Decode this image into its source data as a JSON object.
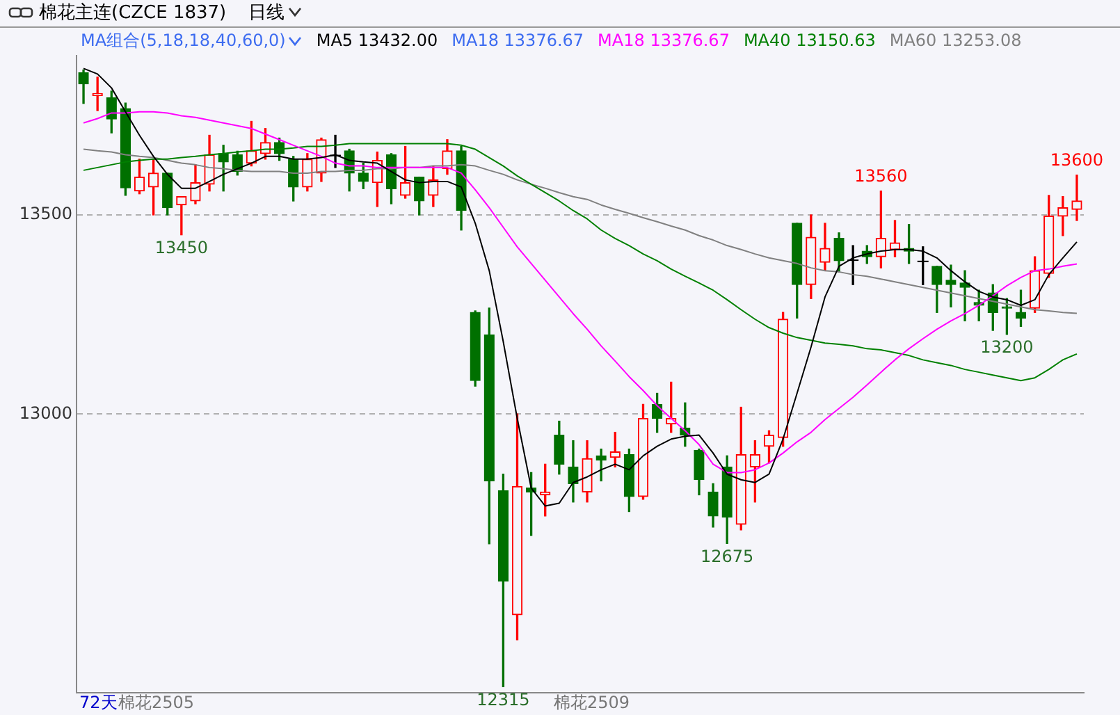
{
  "chart_data": {
    "type": "candlestick",
    "title": "棉花主连(CZCE 1837)",
    "subtitle": "日线",
    "legend_title": "MA组合(5,18,18,40,60,0)",
    "legend": "top",
    "grid": "y",
    "categories": [
      null,
      null,
      null,
      null,
      null,
      null,
      null,
      null,
      null,
      null,
      null,
      null,
      null,
      null,
      null,
      null,
      null,
      null,
      null,
      null,
      null,
      null,
      null,
      null,
      null,
      null,
      null,
      null,
      null,
      null,
      null,
      null,
      null,
      null,
      null,
      null,
      null,
      null,
      null,
      null,
      null,
      null,
      null,
      null,
      null,
      null,
      null,
      null,
      null,
      null,
      null,
      null,
      null,
      null,
      null,
      null,
      null,
      null,
      null,
      null,
      null,
      null,
      null,
      null,
      null,
      null,
      null,
      null,
      null,
      null,
      null,
      null
    ],
    "ylim": [
      12300,
      13900
    ],
    "yticks": [
      13500,
      13000
    ],
    "ohlc": [
      [
        13857,
        13864,
        13780,
        13829
      ],
      [
        13800,
        13846,
        13762,
        13805
      ],
      [
        13794,
        13811,
        13706,
        13741
      ],
      [
        13767,
        13781,
        13549,
        13568
      ],
      [
        13560,
        13640,
        13553,
        13595
      ],
      [
        13570,
        13640,
        13500,
        13605
      ],
      [
        13605,
        13605,
        13500,
        13518
      ],
      [
        13525,
        13546,
        13450,
        13546
      ],
      [
        13535,
        13626,
        13528,
        13581
      ],
      [
        13577,
        13700,
        13560,
        13651
      ],
      [
        13654,
        13675,
        13560,
        13633
      ],
      [
        13651,
        13660,
        13600,
        13609
      ],
      [
        13630,
        13735,
        13623,
        13661
      ],
      [
        13654,
        13717,
        13640,
        13682
      ],
      [
        13682,
        13693,
        13637,
        13654
      ],
      [
        13640,
        13647,
        13535,
        13570
      ],
      [
        13570,
        13654,
        13560,
        13640
      ],
      [
        13605,
        13693,
        13584,
        13689
      ],
      [
        13651,
        13700,
        13619,
        13651
      ],
      [
        13661,
        13665,
        13560,
        13605
      ],
      [
        13605,
        13630,
        13566,
        13584
      ],
      [
        13581,
        13658,
        13521,
        13637
      ],
      [
        13651,
        13654,
        13528,
        13566
      ],
      [
        13549,
        13672,
        13542,
        13581
      ],
      [
        13595,
        13595,
        13500,
        13535
      ],
      [
        13549,
        13623,
        13521,
        13588
      ],
      [
        13616,
        13689,
        13602,
        13661
      ],
      [
        13661,
        13672,
        13462,
        13511
      ],
      [
        13255,
        13259,
        13070,
        13084
      ],
      [
        13199,
        13266,
        12674,
        12832
      ],
      [
        12807,
        12849,
        12315,
        12580
      ],
      [
        12496,
        13000,
        12433,
        12818
      ],
      [
        12814,
        12853,
        12695,
        12804
      ],
      [
        12797,
        12874,
        12744,
        12804
      ],
      [
        12947,
        12982,
        12849,
        12874
      ],
      [
        12867,
        12933,
        12779,
        12825
      ],
      [
        12804,
        12933,
        12779,
        12888
      ],
      [
        12895,
        12912,
        12832,
        12884
      ],
      [
        12891,
        12954,
        12867,
        12905
      ],
      [
        12898,
        12912,
        12755,
        12793
      ],
      [
        12793,
        13024,
        12786,
        12989
      ],
      [
        13024,
        13052,
        12954,
        12989
      ],
      [
        12975,
        13080,
        12954,
        12989
      ],
      [
        12965,
        13028,
        12919,
        12947
      ],
      [
        12909,
        12912,
        12797,
        12835
      ],
      [
        12804,
        12825,
        12716,
        12744
      ],
      [
        12867,
        12895,
        12675,
        12741
      ],
      [
        12723,
        13017,
        12709,
        12898
      ],
      [
        12867,
        12933,
        12779,
        12898
      ],
      [
        12919,
        12958,
        12877,
        12947
      ],
      [
        12941,
        13255,
        12919,
        13238
      ],
      [
        13479,
        13479,
        13241,
        13325
      ],
      [
        13325,
        13500,
        13290,
        13444
      ],
      [
        13381,
        13479,
        13360,
        13416
      ],
      [
        13441,
        13455,
        13357,
        13385
      ],
      [
        13388,
        13423,
        13325,
        13388
      ],
      [
        13409,
        13423,
        13378,
        13395
      ],
      [
        13395,
        13560,
        13367,
        13441
      ],
      [
        13413,
        13486,
        13395,
        13430
      ],
      [
        13416,
        13476,
        13378,
        13409
      ],
      [
        13385,
        13420,
        13325,
        13385
      ],
      [
        13371,
        13371,
        13255,
        13325
      ],
      [
        13336,
        13374,
        13269,
        13325
      ],
      [
        13329,
        13360,
        13234,
        13318
      ],
      [
        13280,
        13311,
        13234,
        13273
      ],
      [
        13304,
        13325,
        13210,
        13255
      ],
      [
        13269,
        13290,
        13200,
        13266
      ],
      [
        13255,
        13311,
        13220,
        13241
      ],
      [
        13266,
        13395,
        13255,
        13360
      ],
      [
        13353,
        13549,
        13343,
        13497
      ],
      [
        13497,
        13546,
        13448,
        13518
      ],
      [
        13514,
        13600,
        13486,
        13535
      ]
    ],
    "colors": [
      "#007000",
      "#ff0000",
      "#007000",
      "#007000",
      "#ff0000",
      "#ff0000",
      "#007000",
      "#ff0000",
      "#ff0000",
      "#ff0000",
      "#007000",
      "#007000",
      "#ff0000",
      "#ff0000",
      "#007000",
      "#007000",
      "#ff0000",
      "#ff0000",
      "#000000",
      "#007000",
      "#007000",
      "#ff0000",
      "#007000",
      "#ff0000",
      "#007000",
      "#ff0000",
      "#ff0000",
      "#007000",
      "#007000",
      "#007000",
      "#007000",
      "#ff0000",
      "#007000",
      "#ff0000",
      "#007000",
      "#007000",
      "#ff0000",
      "#007000",
      "#ff0000",
      "#007000",
      "#ff0000",
      "#007000",
      "#ff0000",
      "#007000",
      "#007000",
      "#007000",
      "#007000",
      "#ff0000",
      "#ff0000",
      "#ff0000",
      "#ff0000",
      "#007000",
      "#ff0000",
      "#ff0000",
      "#007000",
      "#000000",
      "#007000",
      "#ff0000",
      "#ff0000",
      "#007000",
      "#000000",
      "#007000",
      "#007000",
      "#007000",
      "#007000",
      "#007000",
      "#007000",
      "#007000",
      "#ff0000",
      "#ff0000",
      "#ff0000",
      "#ff0000"
    ],
    "series": [
      {
        "type": "line",
        "name": "MA5 13432.00",
        "color": "#000000",
        "values": [
          13868,
          13854,
          13819,
          13759,
          13700,
          13647,
          13602,
          13567,
          13567,
          13584,
          13602,
          13616,
          13630,
          13647,
          13647,
          13640,
          13640,
          13644,
          13651,
          13637,
          13633,
          13630,
          13609,
          13588,
          13581,
          13584,
          13584,
          13570,
          13479,
          13360,
          13182,
          12989,
          12814,
          12769,
          12776,
          12828,
          12842,
          12860,
          12874,
          12860,
          12895,
          12919,
          12937,
          12944,
          12947,
          12902,
          12849,
          12835,
          12828,
          12849,
          12937,
          13052,
          13168,
          13294,
          13371,
          13392,
          13402,
          13409,
          13413,
          13413,
          13409,
          13392,
          13360,
          13332,
          13308,
          13294,
          13287,
          13273,
          13287,
          13350,
          13392,
          13432
        ]
      },
      {
        "type": "line",
        "name": "MA18 13376.67",
        "color": "#3d6cf0",
        "values": [
          null,
          null,
          null,
          null,
          null,
          null,
          null,
          null,
          null,
          null,
          null,
          null,
          null,
          null,
          null,
          null,
          null,
          null,
          null,
          null,
          null,
          null,
          null,
          null,
          null,
          null,
          null,
          null,
          null,
          null,
          null,
          null,
          null,
          null,
          null,
          null,
          null,
          null,
          null,
          null,
          null,
          null,
          null,
          null,
          null,
          null,
          null,
          null,
          null,
          null,
          null,
          null,
          null,
          null,
          null,
          null,
          null,
          null,
          null,
          null,
          null,
          null,
          null,
          null,
          null,
          null,
          null,
          null,
          null,
          null,
          null,
          null
        ]
      },
      {
        "type": "line",
        "name": "MA18 13376.67",
        "color": "#ff00ff",
        "values": [
          13731,
          13742,
          13756,
          13756,
          13759,
          13759,
          13756,
          13749,
          13745,
          13738,
          13731,
          13724,
          13717,
          13703,
          13689,
          13675,
          13661,
          13647,
          13630,
          13623,
          13623,
          13619,
          13619,
          13619,
          13619,
          13619,
          13619,
          13605,
          13563,
          13518,
          13469,
          13420,
          13378,
          13336,
          13294,
          13252,
          13213,
          13171,
          13133,
          13094,
          13059,
          13021,
          12989,
          12958,
          12923,
          12874,
          12853,
          12853,
          12860,
          12877,
          12902,
          12930,
          12954,
          12986,
          13014,
          13042,
          13073,
          13105,
          13136,
          13164,
          13189,
          13213,
          13234,
          13252,
          13273,
          13297,
          13322,
          13343,
          13360,
          13364,
          13371,
          13377
        ]
      },
      {
        "type": "line",
        "name": "MA40 13150.63",
        "color": "#008000",
        "values": [
          13612,
          13619,
          13626,
          13633,
          13637,
          13640,
          13640,
          13644,
          13647,
          13651,
          13654,
          13658,
          13661,
          13665,
          13665,
          13668,
          13672,
          13672,
          13675,
          13679,
          13679,
          13679,
          13679,
          13679,
          13679,
          13679,
          13679,
          13675,
          13665,
          13644,
          13623,
          13598,
          13577,
          13556,
          13535,
          13511,
          13490,
          13462,
          13441,
          13423,
          13402,
          13385,
          13364,
          13346,
          13329,
          13311,
          13287,
          13262,
          13238,
          13217,
          13203,
          13192,
          13185,
          13178,
          13175,
          13171,
          13164,
          13161,
          13154,
          13147,
          13136,
          13129,
          13122,
          13112,
          13105,
          13098,
          13091,
          13084,
          13091,
          13112,
          13136,
          13151
        ]
      },
      {
        "type": "line",
        "name": "MA60 13253.08",
        "color": "#808080",
        "values": [
          13665,
          13661,
          13658,
          13651,
          13647,
          13644,
          13637,
          13630,
          13626,
          13619,
          13616,
          13612,
          13609,
          13609,
          13609,
          13605,
          13605,
          13609,
          13609,
          13612,
          13612,
          13616,
          13616,
          13619,
          13619,
          13623,
          13623,
          13626,
          13623,
          13612,
          13602,
          13588,
          13577,
          13567,
          13556,
          13546,
          13539,
          13525,
          13514,
          13504,
          13493,
          13483,
          13472,
          13462,
          13448,
          13437,
          13423,
          13413,
          13402,
          13392,
          13385,
          13378,
          13367,
          13360,
          13357,
          13350,
          13346,
          13339,
          13332,
          13325,
          13318,
          13311,
          13304,
          13297,
          13290,
          13283,
          13276,
          13269,
          13262,
          13259,
          13255,
          13253
        ]
      }
    ],
    "annotations": [
      {
        "text": "13450",
        "y": 13450
      },
      {
        "text": "12315",
        "y": 12315
      },
      {
        "text": "12675",
        "y": 12675
      },
      {
        "text": "13200",
        "y": 13200
      },
      {
        "text": "13560",
        "y": 13560
      },
      {
        "text": "13600",
        "y": 13600
      },
      "72天",
      "棉花2505",
      "棉花2509"
    ]
  }
}
